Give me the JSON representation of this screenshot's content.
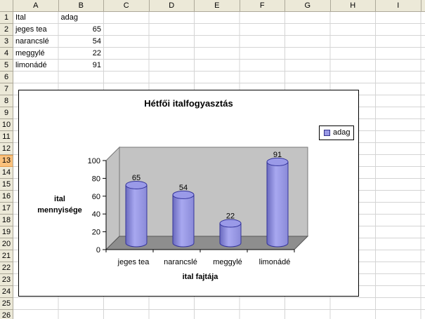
{
  "sheet": {
    "columns": [
      "A",
      "B",
      "C",
      "D",
      "E",
      "F",
      "G",
      "H",
      "I"
    ],
    "row_count": 26,
    "selected_row": 13,
    "cells": [
      {
        "a": "Ital",
        "b": "adag",
        "b_is_number": false
      },
      {
        "a": "jeges tea",
        "b": "65",
        "b_is_number": true
      },
      {
        "a": "narancslé",
        "b": "54",
        "b_is_number": true
      },
      {
        "a": "meggylé",
        "b": "22",
        "b_is_number": true
      },
      {
        "a": "limonádé",
        "b": "91",
        "b_is_number": true
      }
    ]
  },
  "chart": {
    "title": "Hétfői italfogyasztás",
    "legend_label": "adag",
    "y_axis_title_line1": "ital",
    "y_axis_title_line2": "mennyisége",
    "x_axis_title": "ital fajtája",
    "colors": {
      "cylinder": "#9999e6",
      "cylinder_dark": "#6a6abe",
      "cylinder_light": "#a8a8f0",
      "cylinder_outline": "#34349a",
      "wall": "#c3c3c3",
      "floor": "#8e8e8e",
      "selected_row_header": "#fac17c"
    }
  },
  "chart_data": {
    "type": "bar",
    "subtype": "3d-cylinder",
    "title": "Hétfői italfogyasztás",
    "categories": [
      "jeges tea",
      "narancslé",
      "meggylé",
      "limonádé"
    ],
    "series": [
      {
        "name": "adag",
        "values": [
          65,
          54,
          22,
          91
        ]
      }
    ],
    "data_labels": [
      65,
      54,
      22,
      91
    ],
    "xlabel": "ital fajtája",
    "ylabel": "ital mennyisége",
    "ylim": [
      0,
      100
    ],
    "yticks": [
      0,
      20,
      40,
      60,
      80,
      100
    ],
    "grid": false,
    "legend_position": "right"
  }
}
